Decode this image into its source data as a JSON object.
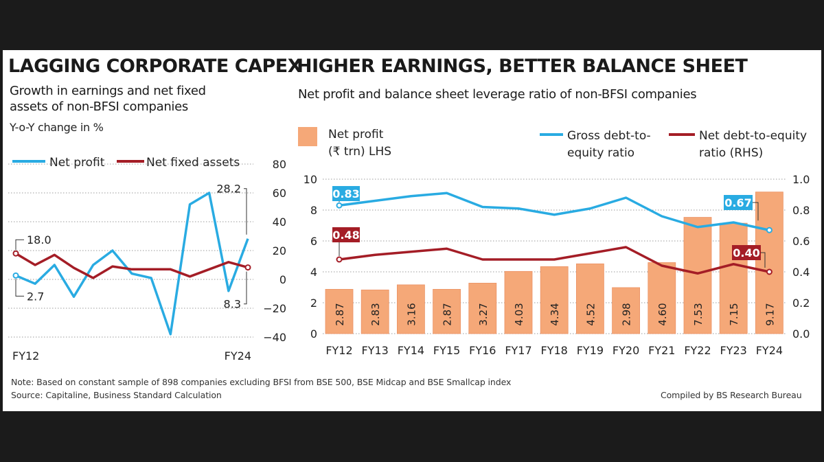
{
  "left": {
    "title": "LAGGING CORPORATE CAPEX",
    "subtitle_line1": "Growth in earnings and net fixed",
    "subtitle_line2": "assets of non-BFSI companies",
    "unit": "Y-o-Y change in %"
  },
  "right": {
    "title": "HIGHER EARNINGS, BETTER BALANCE SHEET",
    "subtitle": "Net profit and balance sheet leverage ratio of non-BFSI companies"
  },
  "footer": {
    "note": "Note: Based on constant sample of 898 companies excluding BFSI from BSE 500, BSE Midcap and BSE Smallcap index",
    "source": "Source: Capitaline, Business Standard Calculation",
    "credit": "Compiled by BS Research Bureau"
  },
  "colors": {
    "blue": "#29abe2",
    "red": "#a41d26",
    "orange": "#f5a878",
    "orange_border": "#eb9264"
  },
  "chart_data": [
    {
      "type": "line",
      "title": "LAGGING CORPORATE CAPEX",
      "subtitle": "Growth in earnings and net fixed assets of non-BFSI companies",
      "ylabel": "Y-o-Y change in %",
      "x_tick_labels": [
        "FY12",
        "FY24"
      ],
      "ylim": [
        -40,
        80
      ],
      "yticks": [
        "80",
        "60",
        "40",
        "20",
        "0",
        "−20",
        "−40"
      ],
      "grid": true,
      "legend": "top-left",
      "series": [
        {
          "name": "Net profit",
          "color": "#29abe2",
          "values": [
            2.7,
            -3,
            10,
            -12,
            10,
            20,
            4,
            1,
            -38,
            52,
            60,
            -8,
            28.2
          ]
        },
        {
          "name": "Net fixed assets",
          "color": "#a41d26",
          "values": [
            18.0,
            10,
            17,
            8,
            1,
            9,
            7,
            7,
            7,
            2,
            7,
            12,
            8.3
          ]
        }
      ],
      "annotations": [
        "18.0",
        "2.7",
        "28.2",
        "8.3"
      ]
    },
    {
      "type": "bar",
      "title": "HIGHER EARNINGS, BETTER BALANCE SHEET",
      "subtitle": "Net profit and balance sheet leverage ratio of non-BFSI companies",
      "categories": [
        "FY12",
        "FY13",
        "FY14",
        "FY15",
        "FY16",
        "FY17",
        "FY18",
        "FY19",
        "FY20",
        "FY21",
        "FY22",
        "FY23",
        "FY24"
      ],
      "bar_series": {
        "name": "Net profit\n(₹ trn) LHS",
        "name_line1": "Net profit",
        "name_line2": "(₹ trn) LHS",
        "color": "#f5a878",
        "values": [
          2.87,
          2.83,
          3.16,
          2.87,
          3.27,
          4.03,
          4.34,
          4.52,
          2.98,
          4.6,
          7.53,
          7.15,
          9.17
        ],
        "labels": [
          "2.87",
          "2.83",
          "3.16",
          "2.87",
          "3.27",
          "4.03",
          "4.34",
          "4.52",
          "2.98",
          "4.60",
          "7.53",
          "7.15",
          "9.17"
        ]
      },
      "line_series": [
        {
          "name": "Gross debt-to-\nequity ratio",
          "name_line1": "Gross debt-to-",
          "name_line2": "equity ratio",
          "color": "#29abe2",
          "values": [
            0.83,
            0.86,
            0.89,
            0.91,
            0.82,
            0.81,
            0.77,
            0.81,
            0.88,
            0.76,
            0.69,
            0.72,
            0.67
          ]
        },
        {
          "name": "Net debt-to-equity\nratio (RHS)",
          "name_line1": "Net debt-to-equity",
          "name_line2": "ratio (RHS)",
          "color": "#a41d26",
          "values": [
            0.48,
            0.51,
            0.53,
            0.55,
            0.48,
            0.48,
            0.48,
            0.52,
            0.56,
            0.44,
            0.39,
            0.45,
            0.4
          ]
        }
      ],
      "left_axis": {
        "ylim": [
          0,
          10
        ],
        "ticks": [
          "0",
          "2",
          "4",
          "6",
          "8",
          "10"
        ]
      },
      "right_axis": {
        "ylim": [
          0,
          1.0
        ],
        "ticks": [
          "0.0",
          "0.2",
          "0.4",
          "0.6",
          "0.8",
          "1.0"
        ]
      },
      "callouts": [
        "0.83",
        "0.48",
        "0.67",
        "0.40"
      ],
      "grid": true,
      "legend": "top"
    }
  ]
}
